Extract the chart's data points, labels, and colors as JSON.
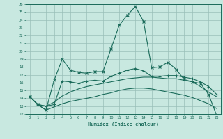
{
  "xlabel": "Humidex (Indice chaleur)",
  "bg_color": "#c8e8e0",
  "grid_color": "#9abfb8",
  "line_color": "#1a6b5a",
  "xlim": [
    -0.5,
    23.5
  ],
  "ylim": [
    12,
    26
  ],
  "xticks": [
    0,
    1,
    2,
    3,
    4,
    5,
    6,
    7,
    8,
    9,
    10,
    11,
    12,
    13,
    14,
    15,
    16,
    17,
    18,
    19,
    20,
    21,
    22,
    23
  ],
  "yticks": [
    12,
    13,
    14,
    15,
    16,
    17,
    18,
    19,
    20,
    21,
    22,
    23,
    24,
    25,
    26
  ],
  "series1_x": [
    0,
    1,
    2,
    3,
    4,
    5,
    6,
    7,
    8,
    9,
    10,
    11,
    12,
    13,
    14,
    15,
    16,
    17,
    18,
    19,
    20,
    21,
    22,
    23
  ],
  "series1_y": [
    14.2,
    13.2,
    12.5,
    16.3,
    19.0,
    17.6,
    17.3,
    17.2,
    17.4,
    17.4,
    20.3,
    23.3,
    24.6,
    25.7,
    23.8,
    17.9,
    18.0,
    18.6,
    17.7,
    16.4,
    16.1,
    15.9,
    14.5,
    11.8
  ],
  "series2_x": [
    0,
    1,
    2,
    3,
    4,
    5,
    6,
    7,
    8,
    9,
    10,
    11,
    12,
    13,
    14,
    15,
    16,
    17,
    18,
    19,
    20,
    21,
    22,
    23
  ],
  "series2_y": [
    14.2,
    13.2,
    13.0,
    13.2,
    16.2,
    16.1,
    15.9,
    16.2,
    16.3,
    16.2,
    16.8,
    17.2,
    17.6,
    17.8,
    17.5,
    16.8,
    16.8,
    16.9,
    16.9,
    16.7,
    16.5,
    16.1,
    15.5,
    14.5
  ],
  "series3_x": [
    0,
    1,
    2,
    3,
    4,
    5,
    6,
    7,
    8,
    9,
    10,
    11,
    12,
    13,
    14,
    15,
    16,
    17,
    18,
    19,
    20,
    21,
    22,
    23
  ],
  "series3_y": [
    14.2,
    13.2,
    12.5,
    12.9,
    13.3,
    13.6,
    13.8,
    14.0,
    14.2,
    14.5,
    14.7,
    15.0,
    15.2,
    15.3,
    15.3,
    15.2,
    15.0,
    14.8,
    14.6,
    14.4,
    14.1,
    13.7,
    13.3,
    12.7
  ],
  "series4_x": [
    0,
    1,
    2,
    3,
    4,
    5,
    6,
    7,
    8,
    9,
    10,
    11,
    12,
    13,
    14,
    15,
    16,
    17,
    18,
    19,
    20,
    21,
    22,
    23
  ],
  "series4_y": [
    14.2,
    13.2,
    13.0,
    13.5,
    14.3,
    14.8,
    15.2,
    15.5,
    15.7,
    15.9,
    16.1,
    16.3,
    16.5,
    16.6,
    16.7,
    16.7,
    16.6,
    16.5,
    16.5,
    16.3,
    16.1,
    15.5,
    14.8,
    14.2
  ]
}
